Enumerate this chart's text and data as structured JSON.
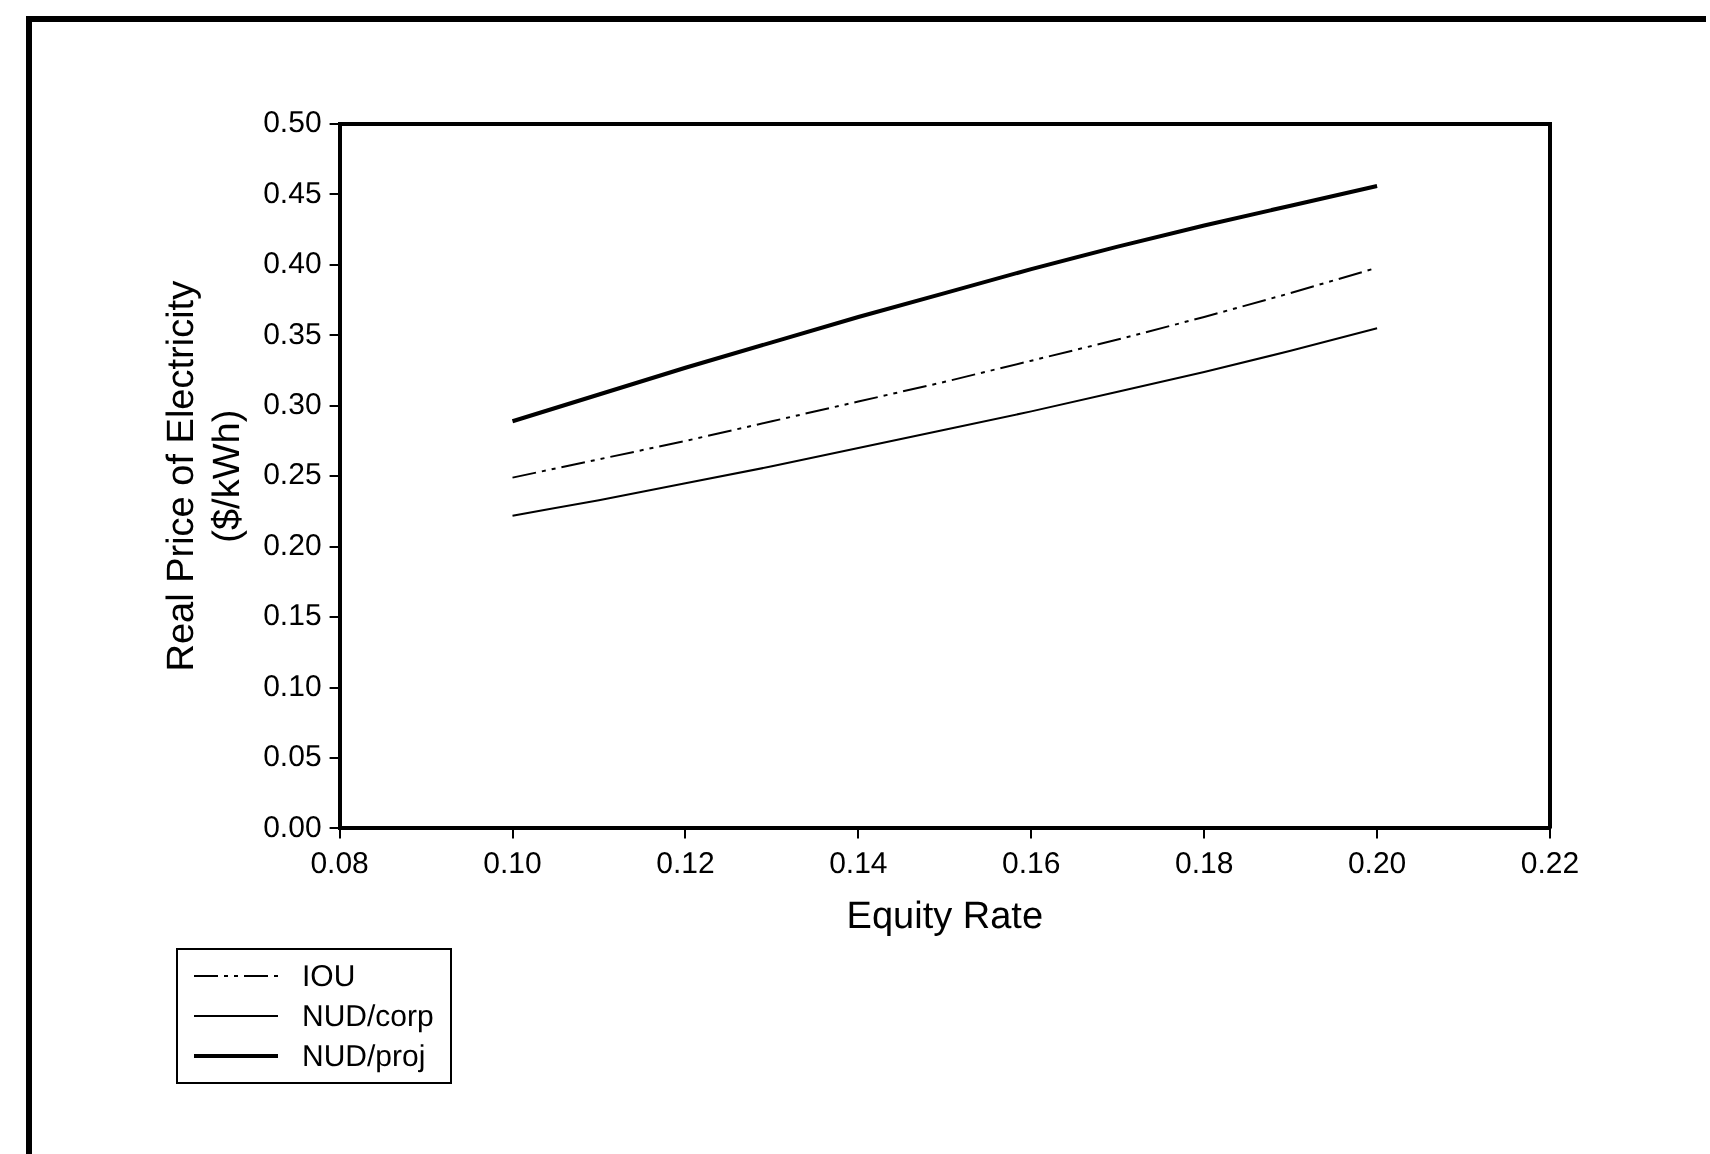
{
  "chart_data": {
    "type": "line",
    "xlabel": "Equity Rate",
    "ylabel": "Real Price of Electricity\n($/kWh)",
    "x": [
      0.1,
      0.11,
      0.12,
      0.13,
      0.14,
      0.15,
      0.16,
      0.17,
      0.18,
      0.19,
      0.2
    ],
    "series": [
      {
        "name": "IOU",
        "color": "#000000",
        "line_style": "dashed",
        "values": [
          0.249,
          0.262,
          0.275,
          0.289,
          0.303,
          0.317,
          0.332,
          0.347,
          0.363,
          0.38,
          0.398
        ]
      },
      {
        "name": "NUD/corp",
        "color": "#000000",
        "line_style": "solid",
        "values": [
          0.222,
          0.233,
          0.245,
          0.257,
          0.27,
          0.283,
          0.296,
          0.31,
          0.324,
          0.339,
          0.355
        ]
      },
      {
        "name": "NUD/proj",
        "color": "#000000",
        "line_style": "solid",
        "values": [
          0.289,
          0.308,
          0.327,
          0.345,
          0.363,
          0.38,
          0.397,
          0.413,
          0.428,
          0.442,
          0.456
        ]
      }
    ],
    "xlim": [
      0.08,
      0.22
    ],
    "xticks": [
      0.08,
      {
        "value": 0.1,
        "label": "0.10"
      },
      0.12,
      0.14,
      0.16,
      0.18,
      {
        "value": 0.2,
        "label": "0.20"
      },
      0.22
    ],
    "ylim": [
      0,
      0.5
    ],
    "yticks": [
      {
        "value": 0,
        "label": "0.00"
      },
      0.05,
      {
        "value": 0.1,
        "label": "0.10"
      },
      0.15,
      {
        "value": 0.2,
        "label": "0.20"
      },
      0.25,
      {
        "value": 0.3,
        "label": "0.30"
      },
      0.35,
      {
        "value": 0.4,
        "label": "0.40"
      },
      0.45,
      {
        "value": 0.5,
        "label": "0.50"
      }
    ],
    "grid": false,
    "legend": "bottom left",
    "marker": "none"
  }
}
